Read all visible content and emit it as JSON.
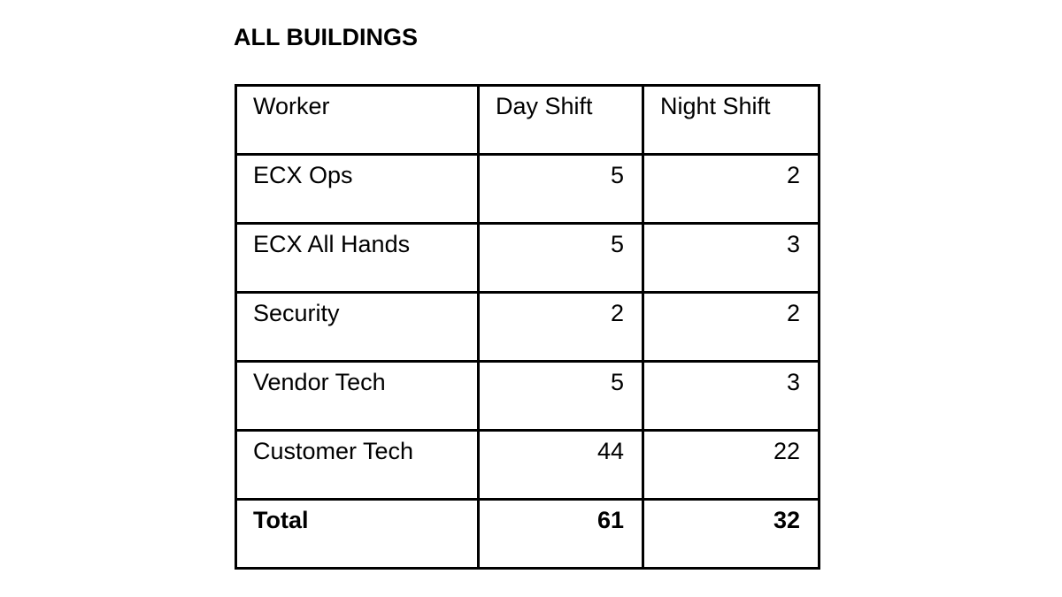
{
  "page": {
    "background_color": "#ffffff",
    "text_color": "#000000",
    "border_color": "#000000"
  },
  "title": "ALL BUILDINGS",
  "table": {
    "columns": {
      "worker": "Worker",
      "day_shift": "Day Shift",
      "night_shift": "Night Shift"
    },
    "rows": [
      {
        "worker": "ECX Ops",
        "day_shift": "5",
        "night_shift": "2"
      },
      {
        "worker": "ECX All Hands",
        "day_shift": "5",
        "night_shift": "3"
      },
      {
        "worker": "Security",
        "day_shift": "2",
        "night_shift": "2"
      },
      {
        "worker": "Vendor Tech",
        "day_shift": "5",
        "night_shift": "3"
      },
      {
        "worker": "Customer Tech",
        "day_shift": "44",
        "night_shift": "22"
      }
    ],
    "total_row": {
      "label": "Total",
      "day_shift": "61",
      "night_shift": "32"
    }
  }
}
